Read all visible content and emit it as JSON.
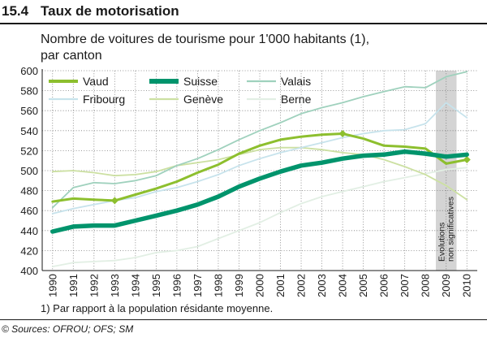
{
  "header": {
    "number": "15.4",
    "title": "Taux de motorisation"
  },
  "subtitle": {
    "line1": "Nombre de voitures de tourisme pour 1'000 habitants (1),",
    "line2": "par canton"
  },
  "footnote": "1) Par rapport à la population résidante moyenne.",
  "source": "© Sources: OFROU; OFS; SM",
  "chart_data": {
    "type": "line",
    "title": "Nombre de voitures de tourisme pour 1'000 habitants (1), par canton",
    "x": [
      "1990",
      "1991",
      "1992",
      "1993",
      "1994",
      "1995",
      "1996",
      "1997",
      "1998",
      "1999",
      "2000",
      "2001",
      "2002",
      "2003",
      "2004",
      "2005",
      "2006",
      "2007",
      "2008",
      "2009",
      "2010"
    ],
    "ylim": [
      400,
      600
    ],
    "yticks": [
      "400",
      "420",
      "440",
      "460",
      "480",
      "500",
      "520",
      "540",
      "560",
      "580",
      "600"
    ],
    "grid": true,
    "shaded_region": {
      "x": "2009",
      "label_line1": "Evolutions",
      "label_line2": "non significatives"
    },
    "legend_position": "top-left",
    "series": [
      {
        "name": "Vaud",
        "color": "#8dbf2e",
        "width": "medium",
        "markers": [
          3,
          14,
          20
        ],
        "values": [
          469,
          472,
          471,
          470,
          476,
          482,
          489,
          498,
          506,
          517,
          525,
          531,
          534,
          536,
          537,
          532,
          525,
          524,
          522,
          507,
          511
        ]
      },
      {
        "name": "Suisse",
        "color": "#00946c",
        "width": "thick",
        "markers": [],
        "values": [
          439,
          444,
          445,
          445,
          450,
          455,
          460,
          466,
          474,
          484,
          492,
          499,
          505,
          508,
          512,
          515,
          516,
          519,
          517,
          514,
          516
        ]
      },
      {
        "name": "Valais",
        "color": "#9fd1bd",
        "width": "thin",
        "markers": [],
        "values": [
          463,
          483,
          488,
          487,
          490,
          495,
          505,
          512,
          521,
          531,
          540,
          548,
          557,
          563,
          568,
          574,
          579,
          584,
          583,
          594,
          599
        ]
      },
      {
        "name": "Fribourg",
        "color": "#c7e3ec",
        "width": "thin",
        "markers": [],
        "values": [
          457,
          462,
          466,
          470,
          473,
          479,
          483,
          489,
          496,
          505,
          512,
          518,
          523,
          528,
          533,
          537,
          540,
          541,
          547,
          568,
          553
        ]
      },
      {
        "name": "Genève",
        "color": "#cce0a2",
        "width": "thin",
        "markers": [],
        "values": [
          499,
          500,
          498,
          495,
          496,
          499,
          505,
          508,
          511,
          516,
          521,
          523,
          523,
          521,
          518,
          516,
          511,
          504,
          496,
          485,
          471
        ]
      },
      {
        "name": "Berne",
        "color": "#e2efe4",
        "width": "thin",
        "markers": [],
        "values": [
          404,
          408,
          409,
          410,
          413,
          418,
          420,
          424,
          432,
          440,
          448,
          458,
          467,
          474,
          479,
          484,
          489,
          493,
          497,
          501,
          503
        ]
      }
    ]
  }
}
